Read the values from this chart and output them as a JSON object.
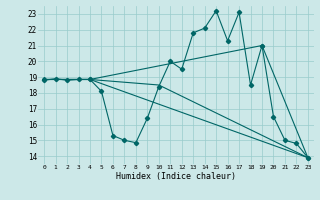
{
  "xlabel": "Humidex (Indice chaleur)",
  "background_color": "#cce8e8",
  "grid_color": "#99cccc",
  "line_color": "#006666",
  "xlim": [
    -0.5,
    23.5
  ],
  "ylim": [
    13.5,
    23.5
  ],
  "xticks": [
    0,
    1,
    2,
    3,
    4,
    5,
    6,
    7,
    8,
    9,
    10,
    11,
    12,
    13,
    14,
    15,
    16,
    17,
    18,
    19,
    20,
    21,
    22,
    23
  ],
  "yticks": [
    14,
    15,
    16,
    17,
    18,
    19,
    20,
    21,
    22,
    23
  ],
  "series1": [
    [
      0,
      18.8
    ],
    [
      1,
      18.9
    ],
    [
      2,
      18.8
    ],
    [
      3,
      18.85
    ],
    [
      4,
      18.85
    ],
    [
      5,
      18.1
    ],
    [
      6,
      15.3
    ],
    [
      7,
      15.0
    ],
    [
      8,
      14.85
    ],
    [
      9,
      16.4
    ],
    [
      10,
      18.4
    ],
    [
      11,
      20.0
    ],
    [
      12,
      19.5
    ],
    [
      13,
      21.8
    ],
    [
      14,
      22.1
    ],
    [
      15,
      23.2
    ],
    [
      16,
      21.3
    ],
    [
      17,
      23.1
    ],
    [
      18,
      18.5
    ],
    [
      19,
      21.0
    ],
    [
      20,
      16.5
    ],
    [
      21,
      15.0
    ],
    [
      22,
      14.8
    ],
    [
      23,
      13.9
    ]
  ],
  "series2": [
    [
      0,
      18.85
    ],
    [
      4,
      18.85
    ],
    [
      19,
      21.0
    ],
    [
      23,
      13.9
    ]
  ],
  "series3": [
    [
      0,
      18.85
    ],
    [
      4,
      18.85
    ],
    [
      23,
      13.9
    ]
  ],
  "series4": [
    [
      0,
      18.85
    ],
    [
      4,
      18.85
    ],
    [
      10,
      18.5
    ],
    [
      23,
      13.9
    ]
  ]
}
